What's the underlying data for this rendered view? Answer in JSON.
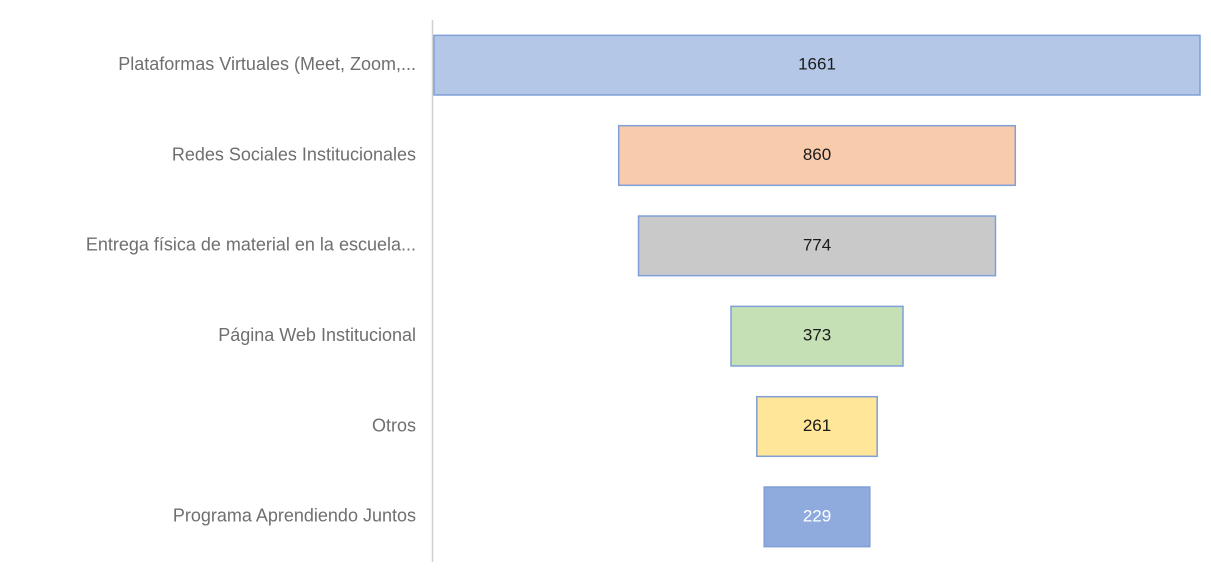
{
  "chart_data": {
    "type": "funnel",
    "categories": [
      "Plataformas Virtuales (Meet, Zoom,...",
      "Redes Sociales Institucionales",
      "Entrega física de material en la escuela...",
      "Página Web Institucional",
      "Otros",
      "Programa Aprendiendo Juntos"
    ],
    "values": [
      1661,
      860,
      774,
      373,
      261,
      229
    ],
    "colors": [
      "#b4c7e7",
      "#f8cbad",
      "#c9c9c9",
      "#c5e0b4",
      "#ffe699",
      "#8faadc"
    ]
  }
}
